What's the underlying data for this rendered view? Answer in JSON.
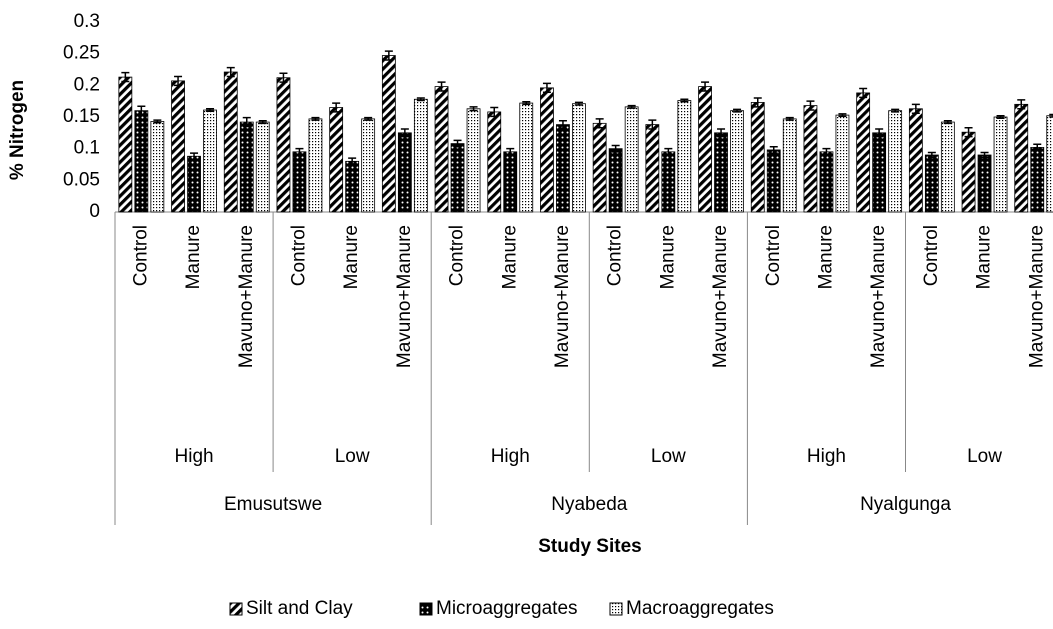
{
  "chart_data": {
    "type": "bar",
    "y_label": "% Nitrogen",
    "x_label": "Study Sites",
    "categories": [
      "Control",
      "Manure",
      "Mavuno+Manure",
      "Control",
      "Manure",
      "Mavuno+Manure",
      "Control",
      "Manure",
      "Mavuno+Manure",
      "Control",
      "Manure",
      "Mavuno+Manure",
      "Control",
      "Manure",
      "Mavuno+Manure",
      "Control",
      "Manure",
      "Mavuno+Manure"
    ],
    "level2": [
      "High",
      "Low",
      "High",
      "Low",
      "High",
      "Low"
    ],
    "level3": [
      "Emusutswe",
      "Nyabeda",
      "Nyalgunga"
    ],
    "series": [
      {
        "name": "Silt and Clay",
        "color": "#000000",
        "pattern": "diagonal",
        "values": [
          0.213,
          0.207,
          0.221,
          0.212,
          0.165,
          0.247,
          0.198,
          0.158,
          0.196,
          0.14,
          0.138,
          0.198,
          0.173,
          0.168,
          0.188,
          0.163,
          0.126,
          0.17
        ],
        "errors": [
          0.007,
          0.007,
          0.007,
          0.007,
          0.007,
          0.007,
          0.007,
          0.007,
          0.007,
          0.007,
          0.007,
          0.007,
          0.007,
          0.007,
          0.007,
          0.007,
          0.007,
          0.007
        ]
      },
      {
        "name": "Microaggregates",
        "color": "#000000",
        "pattern": "dots",
        "values": [
          0.16,
          0.088,
          0.142,
          0.095,
          0.08,
          0.125,
          0.108,
          0.095,
          0.138,
          0.1,
          0.095,
          0.125,
          0.098,
          0.095,
          0.125,
          0.09,
          0.09,
          0.102
        ],
        "errors": [
          0.007,
          0.005,
          0.007,
          0.005,
          0.005,
          0.006,
          0.005,
          0.005,
          0.006,
          0.005,
          0.005,
          0.006,
          0.005,
          0.005,
          0.006,
          0.004,
          0.004,
          0.005
        ]
      },
      {
        "name": "Macroaggregates",
        "color": "#000000",
        "pattern": "dotted",
        "values": [
          0.143,
          0.161,
          0.142,
          0.147,
          0.147,
          0.178,
          0.163,
          0.172,
          0.171,
          0.166,
          0.176,
          0.16,
          0.147,
          0.153,
          0.16,
          0.142,
          0.15,
          0.152
        ],
        "errors": [
          0.002,
          0.002,
          0.002,
          0.002,
          0.002,
          0.002,
          0.003,
          0.002,
          0.002,
          0.002,
          0.002,
          0.002,
          0.002,
          0.002,
          0.002,
          0.002,
          0.002,
          0.002
        ]
      }
    ],
    "ylim": [
      0,
      0.3
    ],
    "yticks": [
      0,
      0.05,
      0.1,
      0.15,
      0.2,
      0.25,
      0.3
    ],
    "legend": "bottom"
  }
}
